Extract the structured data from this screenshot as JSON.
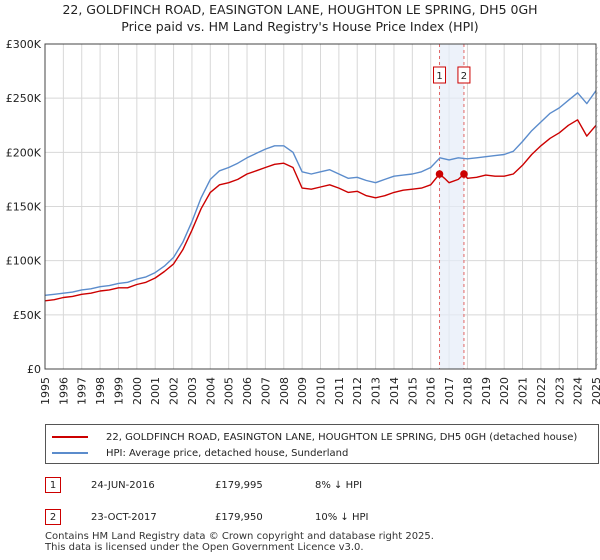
{
  "title_line1": "22, GOLDFINCH ROAD, EASINGTON LANE, HOUGHTON LE SPRING, DH5 0GH",
  "title_line2": "Price paid vs. HM Land Registry's House Price Index (HPI)",
  "chart_data": {
    "type": "line",
    "x_range": [
      1995,
      2025
    ],
    "ylim": [
      0,
      300000
    ],
    "y_ticks": [
      0,
      50000,
      100000,
      150000,
      200000,
      250000,
      300000
    ],
    "y_tick_labels": [
      "£0",
      "£50K",
      "£100K",
      "£150K",
      "£200K",
      "£250K",
      "£300K"
    ],
    "x_ticks": [
      1995,
      1996,
      1997,
      1998,
      1999,
      2000,
      2001,
      2002,
      2003,
      2004,
      2005,
      2006,
      2007,
      2008,
      2009,
      2010,
      2011,
      2012,
      2013,
      2014,
      2015,
      2016,
      2017,
      2018,
      2019,
      2020,
      2021,
      2022,
      2023,
      2024,
      2025
    ],
    "x_tick_labels": [
      "1995",
      "1996",
      "1997",
      "1998",
      "1999",
      "2000",
      "2001",
      "2002",
      "2003",
      "2004",
      "2005",
      "2006",
      "2007",
      "2008",
      "2009",
      "2010",
      "2011",
      "2012",
      "2013",
      "2014",
      "2015",
      "2016",
      "2017",
      "2018",
      "2019",
      "2020",
      "2021",
      "2022",
      "2023",
      "2024",
      "2025"
    ],
    "grid": true,
    "series": [
      {
        "name": "22, GOLDFINCH ROAD, EASINGTON LANE, HOUGHTON LE SPRING, DH5 0GH (detached house)",
        "color": "#cc0000",
        "x": [
          1995.0,
          1995.5,
          1996.0,
          1996.5,
          1997.0,
          1997.5,
          1998.0,
          1998.5,
          1999.0,
          1999.5,
          2000.0,
          2000.5,
          2001.0,
          2001.5,
          2002.0,
          2002.5,
          2003.0,
          2003.5,
          2004.0,
          2004.5,
          2005.0,
          2005.5,
          2006.0,
          2006.5,
          2007.0,
          2007.5,
          2008.0,
          2008.5,
          2009.0,
          2009.5,
          2010.0,
          2010.5,
          2011.0,
          2011.5,
          2012.0,
          2012.5,
          2013.0,
          2013.5,
          2014.0,
          2014.5,
          2015.0,
          2015.5,
          2016.0,
          2016.48,
          2016.75,
          2017.0,
          2017.5,
          2017.81,
          2018.0,
          2018.5,
          2019.0,
          2019.5,
          2020.0,
          2020.5,
          2021.0,
          2021.5,
          2022.0,
          2022.5,
          2023.0,
          2023.5,
          2024.0,
          2024.5,
          2025.0
        ],
        "values": [
          63000,
          64000,
          66000,
          67000,
          69000,
          70000,
          72000,
          73000,
          75000,
          75000,
          78000,
          80000,
          84000,
          90000,
          97000,
          110000,
          128000,
          148000,
          163000,
          170000,
          172000,
          175000,
          180000,
          183000,
          186000,
          189000,
          190000,
          186000,
          167000,
          166000,
          168000,
          170000,
          167000,
          163000,
          164000,
          160000,
          158000,
          160000,
          163000,
          165000,
          166000,
          167000,
          170000,
          179995,
          176000,
          172000,
          175000,
          179950,
          176000,
          177000,
          179000,
          178000,
          178000,
          180000,
          188000,
          198000,
          206000,
          213000,
          218000,
          225000,
          230000,
          215000,
          225000
        ]
      },
      {
        "name": "HPI: Average price, detached house, Sunderland",
        "color": "#5b8ccc",
        "x": [
          1995.0,
          1995.5,
          1996.0,
          1996.5,
          1997.0,
          1997.5,
          1998.0,
          1998.5,
          1999.0,
          1999.5,
          2000.0,
          2000.5,
          2001.0,
          2001.5,
          2002.0,
          2002.5,
          2003.0,
          2003.5,
          2004.0,
          2004.5,
          2005.0,
          2005.5,
          2006.0,
          2006.5,
          2007.0,
          2007.5,
          2008.0,
          2008.5,
          2009.0,
          2009.5,
          2010.0,
          2010.5,
          2011.0,
          2011.5,
          2012.0,
          2012.5,
          2013.0,
          2013.5,
          2014.0,
          2014.5,
          2015.0,
          2015.5,
          2016.0,
          2016.5,
          2017.0,
          2017.5,
          2018.0,
          2018.5,
          2019.0,
          2019.5,
          2020.0,
          2020.5,
          2021.0,
          2021.5,
          2022.0,
          2022.5,
          2023.0,
          2023.5,
          2024.0,
          2024.5,
          2025.0
        ],
        "values": [
          68000,
          69000,
          70000,
          71000,
          73000,
          74000,
          76000,
          77000,
          79000,
          80000,
          83000,
          85000,
          89000,
          95000,
          103000,
          117000,
          136000,
          158000,
          175000,
          183000,
          186000,
          190000,
          195000,
          199000,
          203000,
          206000,
          206000,
          200000,
          182000,
          180000,
          182000,
          184000,
          180000,
          176000,
          177000,
          174000,
          172000,
          175000,
          178000,
          179000,
          180000,
          182000,
          186000,
          195000,
          193000,
          195000,
          194000,
          195000,
          196000,
          197000,
          198000,
          201000,
          210000,
          220000,
          228000,
          236000,
          241000,
          248000,
          255000,
          245000,
          257000
        ]
      }
    ],
    "markers": [
      {
        "label": "1",
        "x": 2016.48,
        "value": 179995
      },
      {
        "label": "2",
        "x": 2017.81,
        "value": 179950
      }
    ],
    "shaded_span": [
      2016.48,
      2017.81
    ],
    "future_hatch_start": 2025.0
  },
  "legend": [
    {
      "label": "22, GOLDFINCH ROAD, EASINGTON LANE, HOUGHTON LE SPRING, DH5 0GH (detached house)",
      "color": "#cc0000"
    },
    {
      "label": "HPI: Average price, detached house, Sunderland",
      "color": "#5b8ccc"
    }
  ],
  "transactions": [
    {
      "num": "1",
      "date": "24-JUN-2016",
      "price": "£179,995",
      "hpi": "8% ↓ HPI"
    },
    {
      "num": "2",
      "date": "23-OCT-2017",
      "price": "£179,950",
      "hpi": "10% ↓ HPI"
    }
  ],
  "footer_line1": "Contains HM Land Registry data © Crown copyright and database right 2025.",
  "footer_line2": "This data is licensed under the Open Government Licence v3.0."
}
